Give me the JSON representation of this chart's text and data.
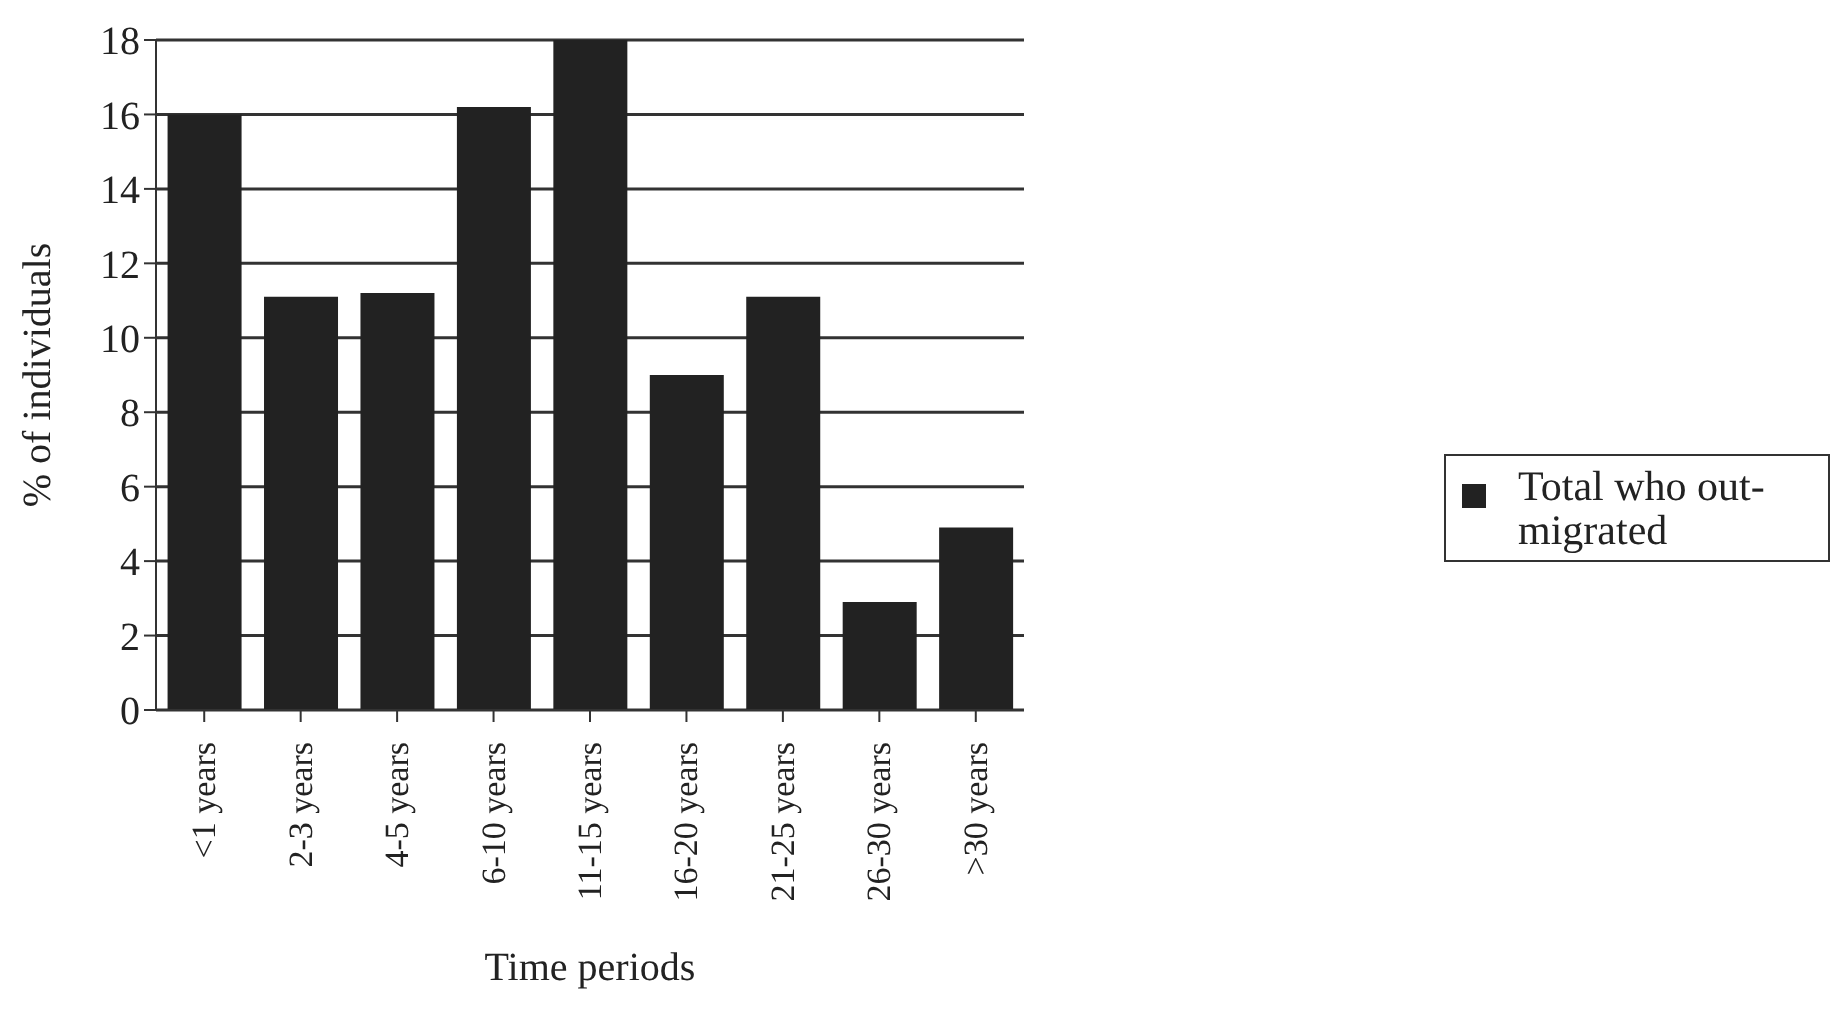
{
  "chart_data": {
    "type": "bar",
    "xlabel": "Time periods",
    "ylabel": "% of individuals",
    "categories": [
      "<1 years",
      "2-3 years",
      "4-5 years",
      "6-10 years",
      "11-15 years",
      "16-20 years",
      "21-25 years",
      "26-30 years",
      ">30 years"
    ],
    "series": [
      {
        "name": "Total who out-migrated",
        "color": "#222222",
        "values": [
          16,
          11.1,
          11.2,
          16.2,
          18,
          9,
          11.1,
          2.9,
          4.9
        ]
      }
    ],
    "ylim": [
      0,
      18
    ],
    "yticks": [
      0,
      2,
      4,
      6,
      8,
      10,
      12,
      14,
      16,
      18
    ],
    "grid": "y",
    "legend": "right"
  }
}
